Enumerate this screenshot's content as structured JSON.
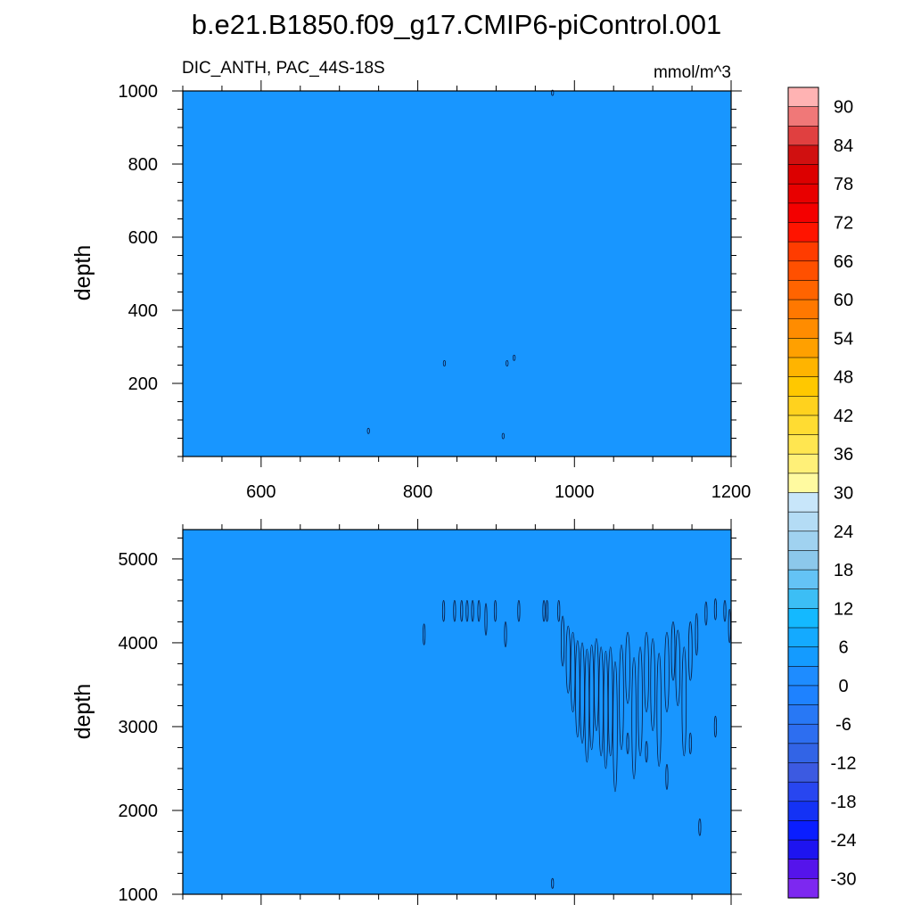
{
  "title": "b.e21.B1850.f09_g17.CMIP6-piControl.001",
  "chart_data": [
    {
      "type": "contour",
      "left_label": "DIC_ANTH, PAC_44S-18S",
      "right_label": "mmol/m^3",
      "ylabel": "depth",
      "xlim": [
        500,
        1200
      ],
      "ylim": [
        1000,
        0
      ],
      "xticks": [
        600,
        800,
        1000,
        1200
      ],
      "yticks": [
        200,
        400,
        600,
        800,
        1000
      ],
      "fill_color": "#1896ff",
      "contours": [
        [
          737,
          70,
          5
        ],
        [
          909,
          56,
          5
        ],
        [
          834,
          255,
          7
        ],
        [
          914,
          255,
          8
        ],
        [
          923,
          270,
          8
        ],
        [
          972,
          995,
          5
        ]
      ]
    },
    {
      "type": "contour",
      "ylabel": "depth",
      "xlim": [
        500,
        1200
      ],
      "ylim": [
        5350,
        1000
      ],
      "xticks": [
        600,
        800,
        1000,
        1200
      ],
      "yticks": [
        1000,
        2000,
        3000,
        4000,
        5000
      ],
      "fill_color": "#1896ff",
      "contours": [
        [
          972,
          1130,
          120
        ],
        [
          1160,
          1800,
          200
        ],
        [
          808,
          4100,
          250
        ],
        [
          833,
          4380,
          250
        ],
        [
          847,
          4380,
          250
        ],
        [
          856,
          4380,
          250
        ],
        [
          863,
          4380,
          250
        ],
        [
          870,
          4380,
          250
        ],
        [
          878,
          4380,
          250
        ],
        [
          887,
          4280,
          380
        ],
        [
          899,
          4380,
          250
        ],
        [
          912,
          4100,
          300
        ],
        [
          929,
          4380,
          250
        ],
        [
          961,
          4380,
          250
        ],
        [
          965,
          4380,
          250
        ],
        [
          980,
          4380,
          250
        ],
        [
          985,
          4020,
          600
        ],
        [
          992,
          3800,
          800
        ],
        [
          998,
          3650,
          950
        ],
        [
          1004,
          3450,
          1150
        ],
        [
          1010,
          3400,
          1200
        ],
        [
          1016,
          3250,
          1350
        ],
        [
          1022,
          3350,
          1250
        ],
        [
          1028,
          3500,
          1100
        ],
        [
          1034,
          3300,
          1300
        ],
        [
          1040,
          3200,
          1400
        ],
        [
          1046,
          3300,
          1300
        ],
        [
          1052,
          3000,
          1550
        ],
        [
          1060,
          3350,
          1250
        ],
        [
          1068,
          2800,
          250
        ],
        [
          1068,
          3700,
          850
        ],
        [
          1076,
          3100,
          1450
        ],
        [
          1084,
          3300,
          1300
        ],
        [
          1092,
          2700,
          250
        ],
        [
          1092,
          3650,
          950
        ],
        [
          1100,
          3500,
          1100
        ],
        [
          1108,
          3200,
          1350
        ],
        [
          1118,
          2400,
          300
        ],
        [
          1118,
          3650,
          950
        ],
        [
          1126,
          3900,
          700
        ],
        [
          1132,
          3700,
          900
        ],
        [
          1140,
          3300,
          1300
        ],
        [
          1148,
          2800,
          250
        ],
        [
          1148,
          3900,
          700
        ],
        [
          1156,
          4100,
          500
        ],
        [
          1168,
          4350,
          280
        ],
        [
          1180,
          3000,
          250
        ],
        [
          1180,
          4400,
          250
        ],
        [
          1192,
          4380,
          250
        ],
        [
          1198,
          4200,
          400
        ]
      ]
    }
  ],
  "colorbar": {
    "labels": [
      "90",
      "84",
      "78",
      "72",
      "66",
      "60",
      "54",
      "48",
      "42",
      "36",
      "30",
      "24",
      "18",
      "12",
      "6",
      "0",
      "-6",
      "-12",
      "-18",
      "-24",
      "-30"
    ],
    "colors": [
      "#ffb3b3",
      "#f07878",
      "#e04040",
      "#d01010",
      "#dc0000",
      "#e80000",
      "#f40000",
      "#ff1400",
      "#ff3c00",
      "#ff5000",
      "#ff6400",
      "#ff7800",
      "#ff8c00",
      "#ffa000",
      "#ffb400",
      "#ffc800",
      "#ffd21e",
      "#ffdc32",
      "#ffe650",
      "#fff078",
      "#fffaa0",
      "#c8e6fa",
      "#b4dcf5",
      "#a0d2f0",
      "#8cc8eb",
      "#64c3f5",
      "#3cbef5",
      "#14b9ff",
      "#14aaff",
      "#149bff",
      "#1e8cff",
      "#1e82ff",
      "#2878f5",
      "#2d6ef0",
      "#3264e6",
      "#3c5ae1",
      "#2846f0",
      "#1432f5",
      "#0a1eff",
      "#1e14f0",
      "#5514eb",
      "#7d28f0"
    ]
  }
}
